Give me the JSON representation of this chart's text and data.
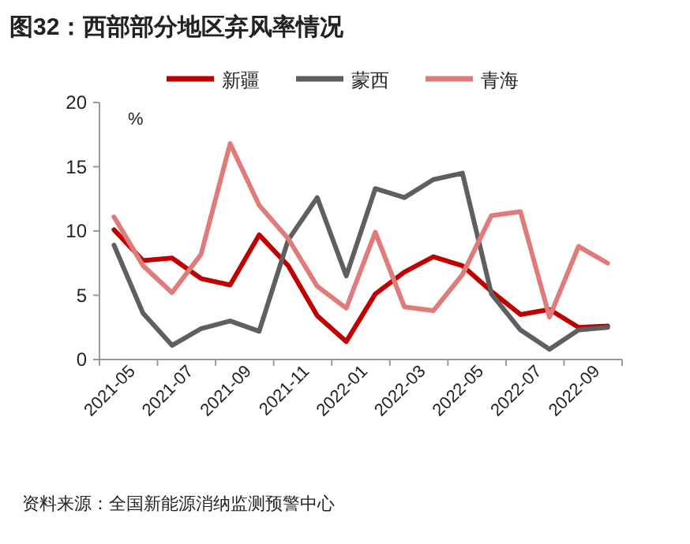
{
  "chart_data": {
    "type": "line",
    "title": "图32：西部部分地区弃风率情况",
    "ylabel": "%",
    "annotations": [
      "资料来源：全国新能源消纳监测预警中心"
    ],
    "categories": [
      "2021-05",
      null,
      "2021-07",
      null,
      "2021-09",
      null,
      "2021-11",
      null,
      "2022-01",
      null,
      "2022-03",
      null,
      "2022-05",
      null,
      "2022-07",
      null,
      "2022-09",
      null
    ],
    "series": [
      {
        "name": "新疆",
        "color": "#c00000",
        "values": [
          10.1,
          7.7,
          7.9,
          6.3,
          5.8,
          9.7,
          7.3,
          3.4,
          1.4,
          5.1,
          6.8,
          8.0,
          7.3,
          5.3,
          3.5,
          3.9,
          2.5,
          2.6
        ]
      },
      {
        "name": "蒙西",
        "color": "#5f5f5f",
        "values": [
          8.9,
          3.6,
          1.1,
          2.4,
          3.0,
          2.2,
          9.3,
          12.6,
          6.5,
          13.3,
          12.6,
          14.0,
          14.5,
          5.1,
          2.3,
          0.8,
          2.3,
          2.5
        ]
      },
      {
        "name": "青海",
        "color": "#e07b7b",
        "values": [
          11.1,
          7.3,
          5.2,
          8.2,
          16.8,
          12.0,
          9.4,
          5.7,
          4.0,
          9.9,
          4.1,
          3.8,
          6.6,
          11.2,
          11.5,
          3.3,
          8.8,
          7.5
        ]
      }
    ],
    "ylim": [
      0,
      20
    ],
    "yticks": [
      0,
      5,
      10,
      15,
      20
    ],
    "legend": "top"
  }
}
